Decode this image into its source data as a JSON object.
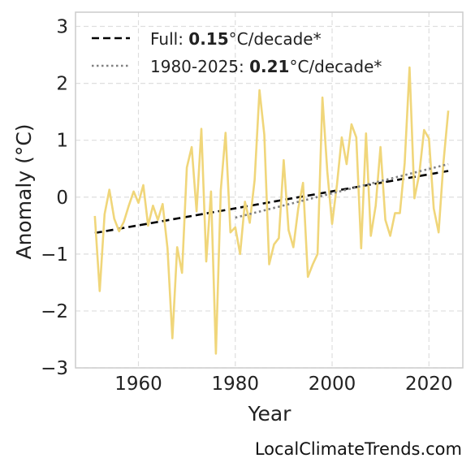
{
  "chart_data": {
    "type": "line",
    "xlabel": "Year",
    "ylabel": "Anomaly (°C)",
    "xlim": [
      1947,
      2027
    ],
    "ylim": [
      -3,
      3.25
    ],
    "xticks": [
      1960,
      1980,
      2000,
      2020
    ],
    "yticks": [
      3,
      2,
      1,
      0,
      -1,
      -2,
      -3
    ],
    "ytick_labels": [
      "3",
      "2",
      "1",
      "0",
      "−1",
      "−2",
      "−3"
    ],
    "grid": true,
    "legend_position": "top-left",
    "series": [
      {
        "role": "data",
        "color": "#f0d67a",
        "x": [
          1951,
          1952,
          1953,
          1954,
          1955,
          1956,
          1957,
          1958,
          1959,
          1960,
          1961,
          1962,
          1963,
          1964,
          1965,
          1966,
          1967,
          1968,
          1969,
          1970,
          1971,
          1972,
          1973,
          1974,
          1975,
          1976,
          1977,
          1978,
          1979,
          1980,
          1981,
          1982,
          1983,
          1984,
          1985,
          1986,
          1987,
          1988,
          1989,
          1990,
          1991,
          1992,
          1993,
          1994,
          1995,
          1996,
          1997,
          1998,
          1999,
          2000,
          2001,
          2002,
          2003,
          2004,
          2005,
          2006,
          2007,
          2008,
          2009,
          2010,
          2011,
          2012,
          2013,
          2014,
          2015,
          2016,
          2017,
          2018,
          2019,
          2020,
          2021,
          2022,
          2023,
          2024
        ],
        "y": [
          -0.33,
          -1.65,
          -0.3,
          0.13,
          -0.38,
          -0.6,
          -0.43,
          -0.15,
          0.1,
          -0.1,
          0.21,
          -0.5,
          -0.15,
          -0.4,
          -0.12,
          -0.9,
          -2.48,
          -0.88,
          -1.33,
          0.52,
          0.88,
          -0.25,
          1.2,
          -1.13,
          0.1,
          -2.75,
          0.12,
          1.13,
          -0.62,
          -0.53,
          -1.0,
          -0.08,
          -0.45,
          0.3,
          1.88,
          1.1,
          -1.18,
          -0.83,
          -0.72,
          0.65,
          -0.58,
          -0.88,
          -0.2,
          0.25,
          -1.4,
          -1.18,
          -1.0,
          1.75,
          0.45,
          -0.47,
          0.22,
          1.05,
          0.58,
          1.28,
          1.05,
          -0.9,
          1.12,
          -0.68,
          -0.15,
          0.88,
          -0.4,
          -0.68,
          -0.28,
          -0.28,
          0.6,
          2.28,
          -0.02,
          0.4,
          1.18,
          1.03,
          -0.2,
          -0.62,
          0.6,
          1.52
        ]
      },
      {
        "role": "trend-full",
        "name": "Full:",
        "color": "#000000",
        "x": [
          1951,
          2024
        ],
        "y": [
          -0.63,
          0.46
        ]
      },
      {
        "role": "trend-recent",
        "name": "1980-2025:",
        "color": "#808080",
        "x": [
          1980,
          2024
        ],
        "y": [
          -0.36,
          0.58
        ]
      }
    ],
    "legend": [
      {
        "prefix": "Full: ",
        "value": "0.15",
        "suffix": "°C/decade*",
        "style": "dashed"
      },
      {
        "prefix": "1980-2025: ",
        "value": "0.21",
        "suffix": "°C/decade*",
        "style": "dotted"
      }
    ]
  },
  "credit": "LocalClimateTrends.com"
}
